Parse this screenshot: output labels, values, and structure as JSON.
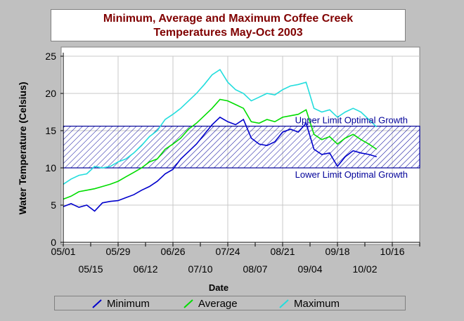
{
  "colors": {
    "background": "#c0c0c0",
    "plot_background": "#ffffff",
    "title": "#800000",
    "minimum": "#0000cc",
    "average": "#00dd00",
    "maximum": "#22dddd",
    "band": "#000099"
  },
  "chart_data": {
    "type": "line",
    "title": "Minimum, Average and Maximum Coffee Creek",
    "subtitle": "Temperatures May-Oct 2003",
    "xlabel": "Date",
    "ylabel": "Water Temperature (Celsius)",
    "ylim": [
      0,
      25
    ],
    "yticks": [
      0,
      5,
      10,
      15,
      20,
      25
    ],
    "xlim": [
      "2003-05-01",
      "2003-10-30"
    ],
    "xticks_top_row": [
      "05/01",
      "05/29",
      "06/26",
      "07/24",
      "08/21",
      "09/18",
      "10/16"
    ],
    "xticks_bottom_row": [
      "05/15",
      "06/12",
      "07/10",
      "08/07",
      "09/04",
      "10/02"
    ],
    "xtick_dates": [
      "2003-05-01",
      "2003-05-15",
      "2003-05-29",
      "2003-06-12",
      "2003-06-26",
      "2003-07-10",
      "2003-07-24",
      "2003-08-07",
      "2003-08-21",
      "2003-09-04",
      "2003-09-18",
      "2003-10-02",
      "2003-10-16",
      "2003-10-30"
    ],
    "grid": true,
    "legend_position": "bottom",
    "band": {
      "lower": 10,
      "upper": 15.6,
      "upper_label": "Upper Limit Optimal Growth",
      "lower_label": "Lower Limit Optimal Growth"
    },
    "x": [
      "2003-05-01",
      "2003-05-05",
      "2003-05-09",
      "2003-05-13",
      "2003-05-17",
      "2003-05-21",
      "2003-05-25",
      "2003-05-29",
      "2003-06-02",
      "2003-06-06",
      "2003-06-10",
      "2003-06-14",
      "2003-06-18",
      "2003-06-22",
      "2003-06-26",
      "2003-06-30",
      "2003-07-04",
      "2003-07-08",
      "2003-07-12",
      "2003-07-16",
      "2003-07-20",
      "2003-07-24",
      "2003-07-28",
      "2003-08-01",
      "2003-08-05",
      "2003-08-09",
      "2003-08-13",
      "2003-08-17",
      "2003-08-21",
      "2003-08-25",
      "2003-08-29",
      "2003-09-02",
      "2003-09-06",
      "2003-09-10",
      "2003-09-14",
      "2003-09-18",
      "2003-09-22",
      "2003-09-26",
      "2003-09-30",
      "2003-10-04",
      "2003-10-08"
    ],
    "series": [
      {
        "name": "Minimum",
        "values": [
          4.8,
          5.2,
          4.7,
          5.0,
          4.2,
          5.3,
          5.5,
          5.6,
          6.0,
          6.4,
          7.0,
          7.5,
          8.2,
          9.2,
          9.8,
          11.2,
          12.2,
          13.2,
          14.5,
          15.8,
          16.8,
          16.2,
          15.8,
          16.5,
          14.0,
          13.2,
          13.0,
          13.5,
          14.8,
          15.2,
          14.8,
          16.0,
          12.5,
          11.8,
          12.0,
          10.2,
          11.5,
          12.3,
          12.0,
          11.8,
          11.5
        ]
      },
      {
        "name": "Average",
        "values": [
          5.8,
          6.2,
          6.8,
          7.0,
          7.2,
          7.5,
          7.8,
          8.2,
          8.8,
          9.4,
          10.0,
          10.8,
          11.2,
          12.5,
          13.2,
          14.0,
          15.2,
          16.0,
          17.0,
          18.0,
          19.2,
          19.0,
          18.5,
          18.0,
          16.2,
          16.0,
          16.5,
          16.2,
          16.8,
          17.0,
          17.2,
          17.8,
          14.5,
          13.8,
          14.2,
          13.2,
          14.0,
          14.5,
          13.8,
          13.2,
          12.5
        ]
      },
      {
        "name": "Maximum",
        "values": [
          7.8,
          8.5,
          9.0,
          9.2,
          10.2,
          10.0,
          10.2,
          10.8,
          11.2,
          12.0,
          13.0,
          14.2,
          15.0,
          16.5,
          17.2,
          18.0,
          19.0,
          20.0,
          21.2,
          22.5,
          23.2,
          21.5,
          20.5,
          20.0,
          19.0,
          19.5,
          20.0,
          19.8,
          20.5,
          21.0,
          21.2,
          21.5,
          18.0,
          17.5,
          17.8,
          16.8,
          17.5,
          18.0,
          17.5,
          16.5,
          15.5
        ]
      }
    ]
  }
}
